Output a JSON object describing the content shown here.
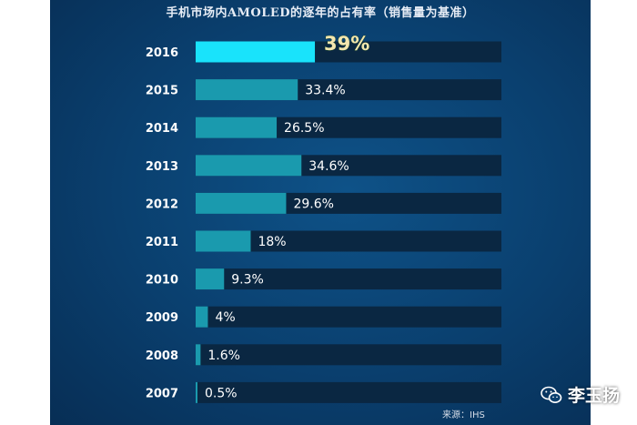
{
  "chart_data": {
    "type": "bar",
    "orientation": "horizontal",
    "title": "手机市场内AMOLED的逐年的占有率（销售量为基准）",
    "categories": [
      "2016",
      "2015",
      "2014",
      "2013",
      "2012",
      "2011",
      "2010",
      "2009",
      "2008",
      "2007"
    ],
    "values": [
      39,
      33.4,
      26.5,
      34.6,
      29.6,
      18,
      9.3,
      4,
      1.6,
      0.5
    ],
    "value_labels": [
      "39%",
      "33.4%",
      "26.5%",
      "34.6%",
      "29.6%",
      "18%",
      "9.3%",
      "4%",
      "1.6%",
      "0.5%"
    ],
    "xlim": [
      0,
      100
    ],
    "highlight_category": "2016",
    "colors": {
      "bar": "#1a9aae",
      "bar_highlight": "#19e3fb",
      "track": "#0a2742",
      "background": "#0a3f6e"
    }
  },
  "source": "来源：IHS",
  "watermark": {
    "text": "李玉扬",
    "icon": "wechat-icon"
  }
}
